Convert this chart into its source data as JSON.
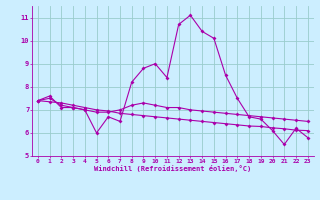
{
  "x": [
    0,
    1,
    2,
    3,
    4,
    5,
    6,
    7,
    8,
    9,
    10,
    11,
    12,
    13,
    14,
    15,
    16,
    17,
    18,
    19,
    20,
    21,
    22,
    23
  ],
  "line1": [
    7.4,
    7.6,
    7.1,
    7.1,
    7.0,
    6.0,
    6.7,
    6.5,
    8.2,
    8.8,
    9.0,
    8.4,
    10.7,
    11.1,
    10.4,
    10.1,
    8.5,
    7.5,
    6.7,
    6.6,
    6.1,
    5.5,
    6.2,
    5.8
  ],
  "line2": [
    7.4,
    7.5,
    7.2,
    7.1,
    7.0,
    6.9,
    6.9,
    7.0,
    7.2,
    7.3,
    7.2,
    7.1,
    7.1,
    7.0,
    6.95,
    6.9,
    6.85,
    6.8,
    6.75,
    6.7,
    6.65,
    6.6,
    6.55,
    6.5
  ],
  "line3": [
    7.4,
    7.35,
    7.3,
    7.2,
    7.1,
    7.0,
    6.95,
    6.85,
    6.8,
    6.75,
    6.7,
    6.65,
    6.6,
    6.55,
    6.5,
    6.45,
    6.4,
    6.35,
    6.3,
    6.28,
    6.22,
    6.18,
    6.12,
    6.1
  ],
  "line_color": "#aa00aa",
  "bg_color": "#cceeff",
  "grid_color": "#99cccc",
  "xlabel": "Windchill (Refroidissement éolien,°C)",
  "ylim": [
    5,
    11.5
  ],
  "xlim": [
    -0.5,
    23.5
  ],
  "yticks": [
    5,
    6,
    7,
    8,
    9,
    10,
    11
  ],
  "xticks": [
    0,
    1,
    2,
    3,
    4,
    5,
    6,
    7,
    8,
    9,
    10,
    11,
    12,
    13,
    14,
    15,
    16,
    17,
    18,
    19,
    20,
    21,
    22,
    23
  ]
}
